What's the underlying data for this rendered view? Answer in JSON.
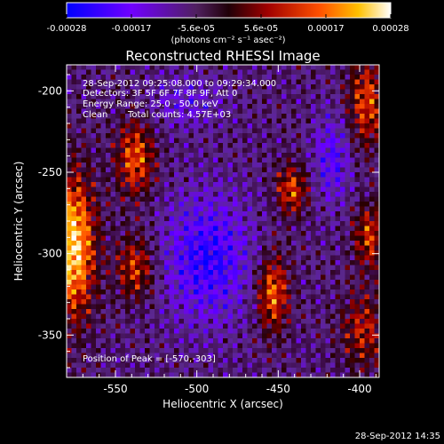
{
  "title": "Reconstructed RHESSI Image",
  "colorbar": {
    "tick_labels": [
      "-0.00028",
      "-0.00017",
      "-5.6e-05",
      "5.6e-05",
      "0.00017",
      "0.00028"
    ],
    "unit_label": "(photons cm⁻² s⁻¹ asec⁻²)",
    "range": [
      -0.00028,
      0.00028
    ]
  },
  "info": {
    "time_range": "28-Sep-2012 09:25:08.000 to 09:29:34.000",
    "detectors": "Detectors: 3F 5F 6F 7F 8F 9F, Att 0",
    "energy": "Energy Range: 25.0 - 50.0 keV",
    "algorithm": "Clean",
    "counts": "Total counts: 4.57E+03"
  },
  "peak": "Position of Peak = [-570,-303]",
  "timestamp": "28-Sep-2012 14:35",
  "chart_data": {
    "type": "heatmap",
    "title": "Reconstructed RHESSI Image",
    "xlabel": "Heliocentric X (arcsec)",
    "ylabel": "Heliocentric Y (arcsec)",
    "xlim": [
      -580,
      -388
    ],
    "ylim": [
      -376,
      -184
    ],
    "xticks": [
      -550,
      -500,
      -450,
      -400
    ],
    "yticks": [
      -200,
      -250,
      -300,
      -350
    ],
    "xtick_labels": [
      "-550",
      "-500",
      "-450",
      "-400"
    ],
    "ytick_labels": [
      "-200",
      "-250",
      "-300",
      "-350"
    ],
    "value_range": [
      -0.00028,
      0.00028
    ],
    "peak_position": [
      -570,
      -303
    ],
    "grid": false,
    "colormap": [
      "#0000ff",
      "#8000ff",
      "#500050",
      "#300000",
      "#c00000",
      "#ff6000",
      "#ffd000",
      "#ffffff"
    ]
  }
}
